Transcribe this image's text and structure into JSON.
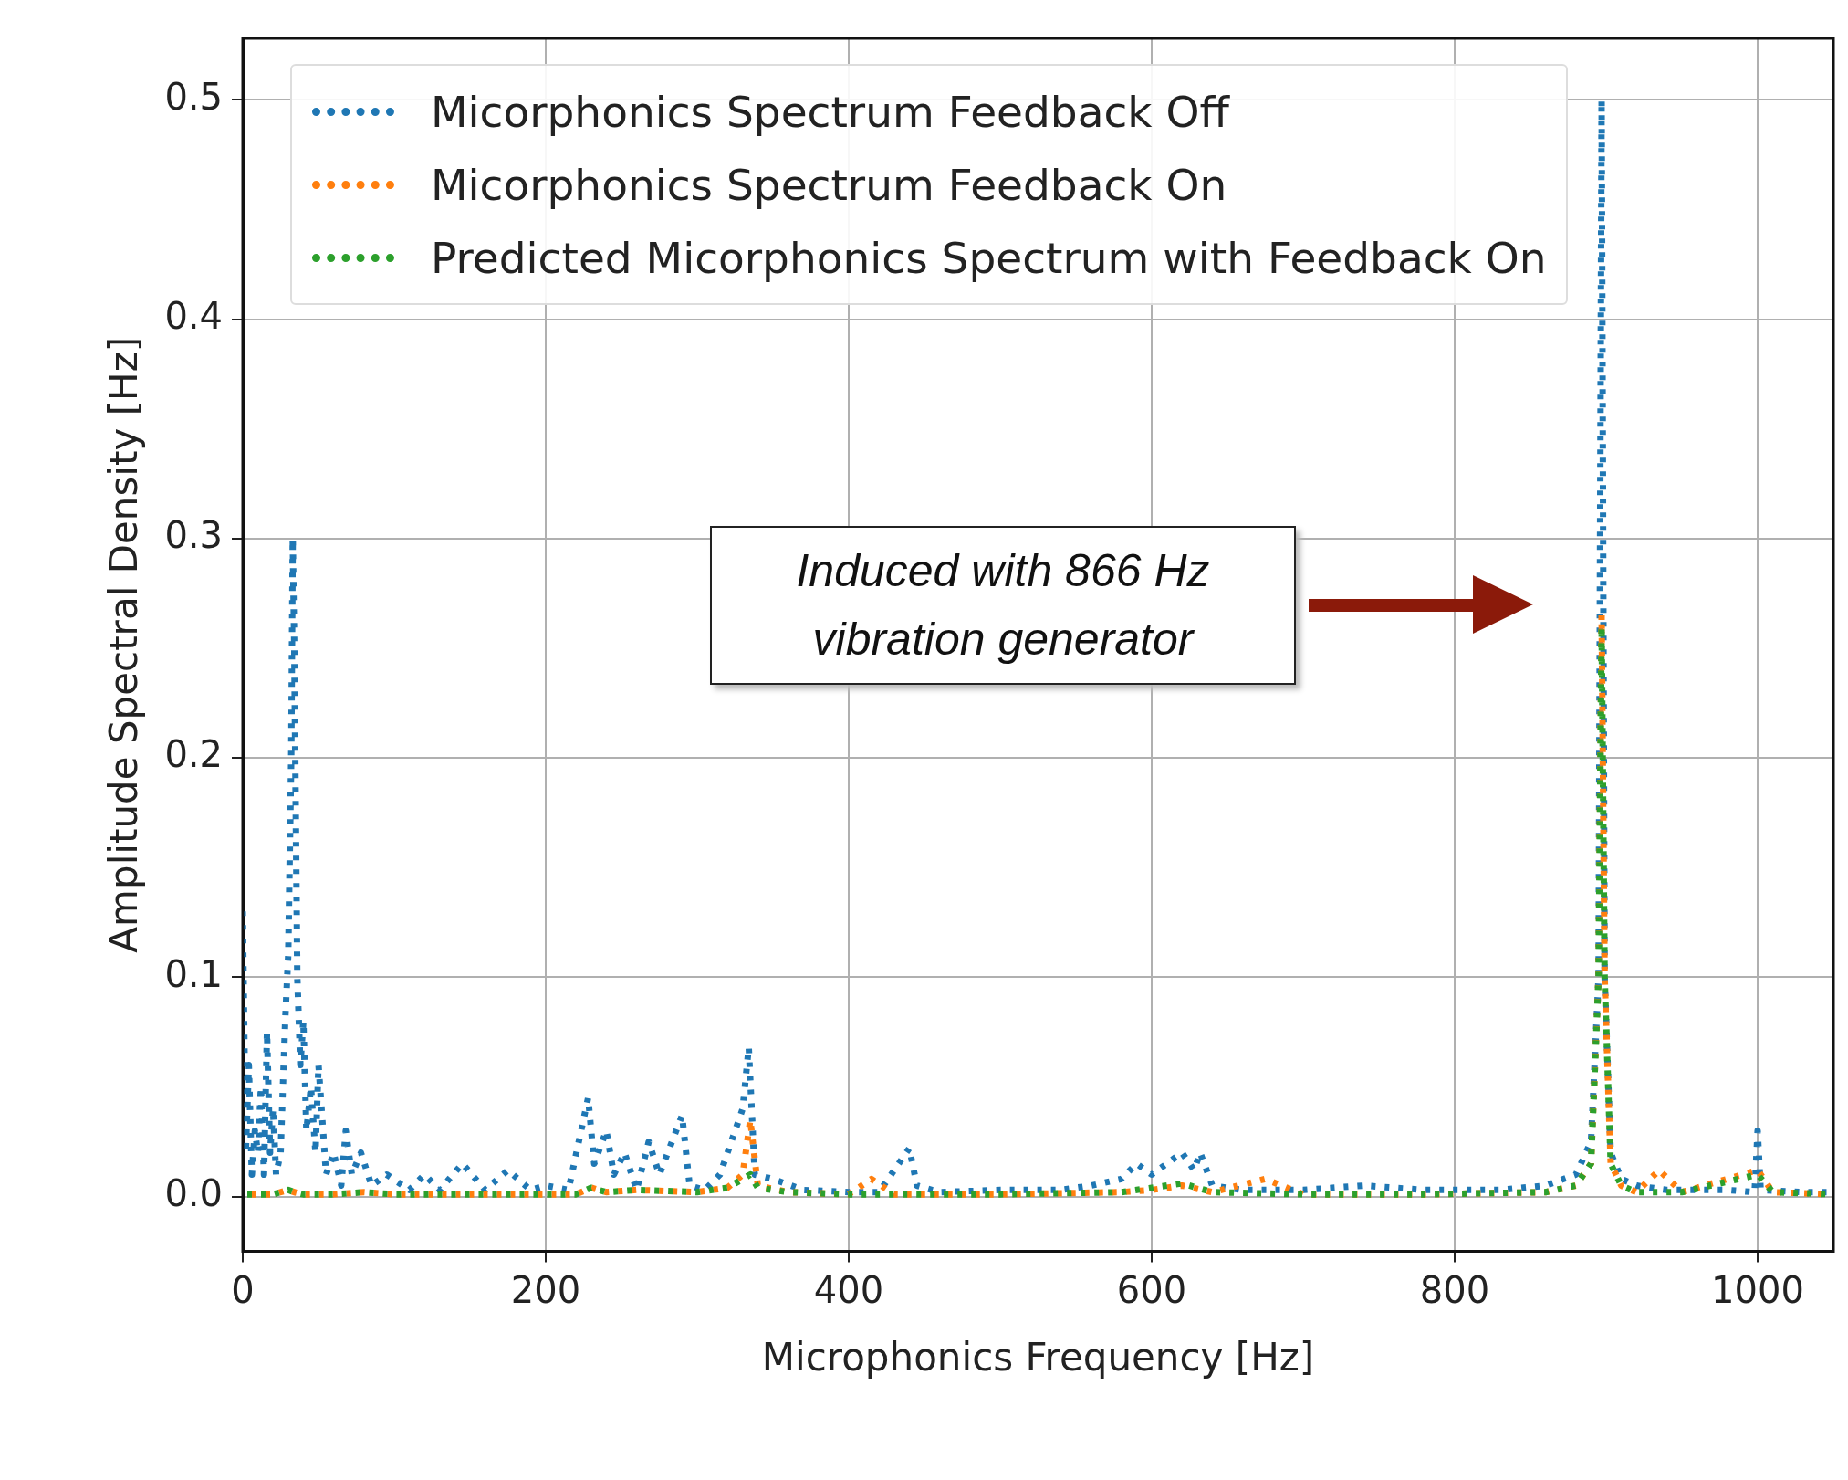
{
  "chart_data": {
    "type": "line",
    "xlabel": "Microphonics Frequency [Hz]",
    "ylabel": "Amplitude Spectral Density [Hz]",
    "xlim": [
      0,
      1050
    ],
    "ylim": [
      -0.025,
      0.528
    ],
    "xticks": [
      0,
      200,
      400,
      600,
      800,
      1000
    ],
    "yticks": [
      {
        "value": 0,
        "label": "0.0"
      },
      0.1,
      0.2,
      0.3,
      0.4,
      0.5
    ],
    "grid": true,
    "legend": "top left",
    "line_style": "dotted",
    "marker": "none",
    "annotations": [
      "Induced with  866 Hz\nvibration generator"
    ],
    "series": [
      {
        "name": "Micorphonics Spectrum Feedback Off",
        "color": "#1f77b4",
        "x": [
          0,
          2,
          4,
          6,
          8,
          10,
          12,
          14,
          16,
          18,
          20,
          22,
          25,
          28,
          30,
          32,
          33,
          34,
          36,
          38,
          40,
          42,
          45,
          48,
          50,
          55,
          60,
          65,
          68,
          72,
          78,
          85,
          95,
          110,
          120,
          130,
          145,
          160,
          175,
          190,
          200,
          215,
          228,
          232,
          240,
          245,
          252,
          260,
          268,
          275,
          290,
          295,
          305,
          315,
          330,
          334,
          338,
          350,
          370,
          400,
          420,
          440,
          445,
          460,
          500,
          540,
          560,
          580,
          590,
          600,
          610,
          620,
          628,
          632,
          640,
          660,
          700,
          740,
          780,
          830,
          860,
          880,
          890,
          895,
          896,
          897,
          898,
          899,
          903,
          910,
          920,
          940,
          980,
          998,
          1000,
          1002,
          1030,
          1050
        ],
        "values": [
          0.13,
          0.02,
          0.06,
          0.01,
          0.03,
          0.02,
          0.05,
          0.01,
          0.075,
          0.02,
          0.04,
          0.01,
          0.02,
          0.08,
          0.11,
          0.2,
          0.3,
          0.25,
          0.1,
          0.06,
          0.08,
          0.03,
          0.05,
          0.02,
          0.06,
          0.01,
          0.02,
          0.005,
          0.03,
          0.01,
          0.02,
          0.005,
          0.01,
          0.003,
          0.01,
          0.003,
          0.015,
          0.003,
          0.012,
          0.003,
          0.005,
          0.003,
          0.045,
          0.015,
          0.03,
          0.01,
          0.02,
          0.003,
          0.025,
          0.01,
          0.037,
          0.005,
          0.003,
          0.01,
          0.04,
          0.068,
          0.01,
          0.008,
          0.003,
          0.002,
          0.002,
          0.022,
          0.005,
          0.002,
          0.003,
          0.003,
          0.005,
          0.008,
          0.015,
          0.01,
          0.015,
          0.02,
          0.012,
          0.02,
          0.005,
          0.003,
          0.003,
          0.005,
          0.003,
          0.003,
          0.005,
          0.01,
          0.025,
          0.1,
          0.3,
          0.5,
          0.3,
          0.1,
          0.02,
          0.008,
          0.005,
          0.003,
          0.003,
          0.002,
          0.03,
          0.003,
          0.002,
          0.002
        ]
      },
      {
        "name": "Micorphonics Spectrum Feedback On",
        "color": "#ff7f0e",
        "x": [
          0,
          10,
          20,
          30,
          34,
          40,
          60,
          80,
          100,
          140,
          180,
          220,
          230,
          240,
          260,
          300,
          320,
          330,
          335,
          340,
          360,
          400,
          415,
          430,
          500,
          580,
          600,
          620,
          640,
          675,
          700,
          780,
          860,
          880,
          890,
          895,
          897,
          899,
          903,
          910,
          920,
          935,
          950,
          1000,
          1010,
          1050
        ],
        "values": [
          0.001,
          0.001,
          0.001,
          0.003,
          0.002,
          0.001,
          0.001,
          0.002,
          0.001,
          0.001,
          0.001,
          0.001,
          0.004,
          0.002,
          0.003,
          0.002,
          0.004,
          0.01,
          0.035,
          0.005,
          0.002,
          0.001,
          0.008,
          0.001,
          0.001,
          0.002,
          0.003,
          0.005,
          0.002,
          0.008,
          0.001,
          0.001,
          0.002,
          0.005,
          0.015,
          0.1,
          0.265,
          0.1,
          0.015,
          0.005,
          0.002,
          0.012,
          0.002,
          0.012,
          0.002,
          0.001
        ]
      },
      {
        "name": "Predicted Micorphonics Spectrum with Feedback On",
        "color": "#2ca02c",
        "x": [
          0,
          10,
          20,
          30,
          34,
          40,
          60,
          80,
          100,
          140,
          180,
          220,
          230,
          240,
          260,
          300,
          320,
          330,
          335,
          340,
          360,
          400,
          430,
          500,
          580,
          600,
          620,
          640,
          700,
          780,
          860,
          880,
          890,
          895,
          897,
          899,
          903,
          910,
          920,
          950,
          1000,
          1010,
          1050
        ],
        "values": [
          0.001,
          0.001,
          0.001,
          0.003,
          0.002,
          0.001,
          0.001,
          0.002,
          0.001,
          0.001,
          0.001,
          0.001,
          0.004,
          0.002,
          0.003,
          0.002,
          0.004,
          0.008,
          0.01,
          0.004,
          0.002,
          0.001,
          0.001,
          0.001,
          0.002,
          0.004,
          0.006,
          0.002,
          0.001,
          0.001,
          0.002,
          0.005,
          0.015,
          0.1,
          0.26,
          0.1,
          0.015,
          0.005,
          0.002,
          0.002,
          0.01,
          0.002,
          0.001
        ]
      }
    ]
  }
}
